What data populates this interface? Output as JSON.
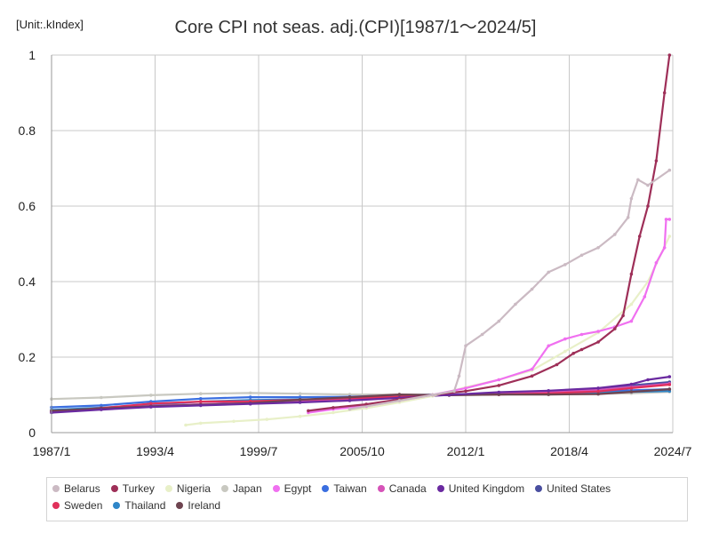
{
  "unit_label": "[Unit:.kIndex]",
  "chart_data": {
    "type": "line",
    "title": "Core CPI not seas. adj.(CPI)[1987/1～2024/5]",
    "xlabel": "",
    "ylabel": "",
    "xlim": [
      1987.0,
      2024.5
    ],
    "ylim": [
      0,
      1
    ],
    "x_ticks": [
      {
        "value": 1987.0,
        "label": "1987/1"
      },
      {
        "value": 1993.25,
        "label": "1993/4"
      },
      {
        "value": 1999.5,
        "label": "1999/7"
      },
      {
        "value": 2005.75,
        "label": "2005/10"
      },
      {
        "value": 2012.0,
        "label": "2012/1"
      },
      {
        "value": 2018.25,
        "label": "2018/4"
      },
      {
        "value": 2024.5,
        "label": "2024/7"
      }
    ],
    "y_ticks": [
      {
        "value": 0,
        "label": "0"
      },
      {
        "value": 0.2,
        "label": "0.2"
      },
      {
        "value": 0.4,
        "label": "0.4"
      },
      {
        "value": 0.6,
        "label": "0.6"
      },
      {
        "value": 0.8,
        "label": "0.8"
      },
      {
        "value": 1,
        "label": "1"
      }
    ],
    "grid": true,
    "legend_position": "bottom",
    "series": [
      {
        "name": "Japan",
        "color": "#c8c8c0",
        "points": [
          [
            1987,
            0.089
          ],
          [
            1990,
            0.093
          ],
          [
            1993,
            0.099
          ],
          [
            1996,
            0.103
          ],
          [
            1999,
            0.105
          ],
          [
            2002,
            0.103
          ],
          [
            2005,
            0.101
          ],
          [
            2008,
            0.101
          ],
          [
            2011,
            0.1
          ],
          [
            2014,
            0.102
          ],
          [
            2017,
            0.103
          ],
          [
            2020,
            0.103
          ],
          [
            2022,
            0.104
          ],
          [
            2024.3,
            0.108
          ]
        ]
      },
      {
        "name": "Taiwan",
        "color": "#3a6ee0",
        "points": [
          [
            1987,
            0.067
          ],
          [
            1990,
            0.072
          ],
          [
            1993,
            0.082
          ],
          [
            1996,
            0.09
          ],
          [
            1999,
            0.094
          ],
          [
            2002,
            0.094
          ],
          [
            2005,
            0.095
          ],
          [
            2008,
            0.099
          ],
          [
            2011,
            0.101
          ],
          [
            2014,
            0.104
          ],
          [
            2017,
            0.106
          ],
          [
            2020,
            0.108
          ],
          [
            2022,
            0.112
          ],
          [
            2024.3,
            0.115
          ]
        ]
      },
      {
        "name": "Thailand",
        "color": "#2f86c8",
        "points": [
          [
            1987,
            0.06
          ],
          [
            1990,
            0.066
          ],
          [
            1993,
            0.074
          ],
          [
            1996,
            0.082
          ],
          [
            1999,
            0.086
          ],
          [
            2002,
            0.088
          ],
          [
            2005,
            0.09
          ],
          [
            2008,
            0.096
          ],
          [
            2011,
            0.1
          ],
          [
            2014,
            0.103
          ],
          [
            2017,
            0.104
          ],
          [
            2020,
            0.105
          ],
          [
            2022,
            0.108
          ],
          [
            2024.3,
            0.11
          ]
        ]
      },
      {
        "name": "United States",
        "color": "#4a4fa0",
        "points": [
          [
            1987,
            0.055
          ],
          [
            1990,
            0.062
          ],
          [
            1993,
            0.069
          ],
          [
            1996,
            0.075
          ],
          [
            1999,
            0.08
          ],
          [
            2002,
            0.085
          ],
          [
            2005,
            0.09
          ],
          [
            2008,
            0.096
          ],
          [
            2011,
            0.1
          ],
          [
            2014,
            0.105
          ],
          [
            2017,
            0.11
          ],
          [
            2020,
            0.116
          ],
          [
            2022,
            0.125
          ],
          [
            2024.3,
            0.134
          ]
        ]
      },
      {
        "name": "Canada",
        "color": "#d653b8",
        "points": [
          [
            1987,
            0.056
          ],
          [
            1990,
            0.063
          ],
          [
            1993,
            0.071
          ],
          [
            1996,
            0.075
          ],
          [
            1999,
            0.079
          ],
          [
            2002,
            0.084
          ],
          [
            2005,
            0.09
          ],
          [
            2008,
            0.095
          ],
          [
            2011,
            0.1
          ],
          [
            2014,
            0.104
          ],
          [
            2017,
            0.108
          ],
          [
            2020,
            0.113
          ],
          [
            2022,
            0.121
          ],
          [
            2024.3,
            0.13
          ]
        ]
      },
      {
        "name": "Sweden",
        "color": "#e0305a",
        "points": [
          [
            1987,
            0.055
          ],
          [
            1990,
            0.065
          ],
          [
            1993,
            0.077
          ],
          [
            1996,
            0.082
          ],
          [
            1999,
            0.083
          ],
          [
            2002,
            0.087
          ],
          [
            2005,
            0.091
          ],
          [
            2008,
            0.095
          ],
          [
            2011,
            0.1
          ],
          [
            2014,
            0.101
          ],
          [
            2017,
            0.104
          ],
          [
            2020,
            0.109
          ],
          [
            2022,
            0.118
          ],
          [
            2024.3,
            0.127
          ]
        ]
      },
      {
        "name": "Ireland",
        "color": "#6e4450",
        "points": [
          [
            1987,
            0.058
          ],
          [
            1990,
            0.064
          ],
          [
            1993,
            0.07
          ],
          [
            1996,
            0.074
          ],
          [
            1999,
            0.078
          ],
          [
            2002,
            0.087
          ],
          [
            2005,
            0.094
          ],
          [
            2008,
            0.101
          ],
          [
            2011,
            0.099
          ],
          [
            2014,
            0.101
          ],
          [
            2017,
            0.101
          ],
          [
            2020,
            0.102
          ],
          [
            2022,
            0.108
          ],
          [
            2024.3,
            0.115
          ]
        ]
      },
      {
        "name": "United Kingdom",
        "color": "#6a2aa0",
        "points": [
          [
            1987,
            0.053
          ],
          [
            1990,
            0.061
          ],
          [
            1993,
            0.068
          ],
          [
            1996,
            0.072
          ],
          [
            1999,
            0.076
          ],
          [
            2002,
            0.08
          ],
          [
            2005,
            0.085
          ],
          [
            2008,
            0.092
          ],
          [
            2011,
            0.1
          ],
          [
            2014,
            0.107
          ],
          [
            2017,
            0.111
          ],
          [
            2020,
            0.118
          ],
          [
            2022,
            0.128
          ],
          [
            2023,
            0.14
          ],
          [
            2024.3,
            0.148
          ]
        ]
      },
      {
        "name": "Nigeria",
        "color": "#e8f0c8",
        "points": [
          [
            1995.1,
            0.02
          ],
          [
            1996,
            0.025
          ],
          [
            1998,
            0.03
          ],
          [
            2000,
            0.035
          ],
          [
            2002,
            0.043
          ],
          [
            2004,
            0.053
          ],
          [
            2006,
            0.065
          ],
          [
            2008,
            0.08
          ],
          [
            2010,
            0.097
          ],
          [
            2012,
            0.12
          ],
          [
            2014,
            0.14
          ],
          [
            2016,
            0.165
          ],
          [
            2018,
            0.215
          ],
          [
            2020,
            0.265
          ],
          [
            2022,
            0.34
          ],
          [
            2023,
            0.4
          ],
          [
            2024.3,
            0.52
          ]
        ]
      },
      {
        "name": "Egypt",
        "color": "#f070f0",
        "points": [
          [
            2002.5,
            0.053
          ],
          [
            2004,
            0.062
          ],
          [
            2006,
            0.07
          ],
          [
            2008,
            0.085
          ],
          [
            2010,
            0.1
          ],
          [
            2012,
            0.118
          ],
          [
            2014,
            0.14
          ],
          [
            2016,
            0.168
          ],
          [
            2017,
            0.23
          ],
          [
            2018,
            0.248
          ],
          [
            2019,
            0.26
          ],
          [
            2020,
            0.268
          ],
          [
            2021,
            0.28
          ],
          [
            2022,
            0.295
          ],
          [
            2022.8,
            0.36
          ],
          [
            2023.5,
            0.45
          ],
          [
            2024.0,
            0.49
          ],
          [
            2024.1,
            0.565
          ],
          [
            2024.3,
            0.565
          ]
        ]
      },
      {
        "name": "Turkey",
        "color": "#9e2f58",
        "points": [
          [
            2002.5,
            0.058
          ],
          [
            2004,
            0.066
          ],
          [
            2006,
            0.075
          ],
          [
            2008,
            0.088
          ],
          [
            2010,
            0.1
          ],
          [
            2012,
            0.11
          ],
          [
            2014,
            0.125
          ],
          [
            2016,
            0.15
          ],
          [
            2017.5,
            0.18
          ],
          [
            2018.5,
            0.21
          ],
          [
            2019,
            0.22
          ],
          [
            2020,
            0.24
          ],
          [
            2021,
            0.275
          ],
          [
            2021.5,
            0.31
          ],
          [
            2022,
            0.42
          ],
          [
            2022.5,
            0.52
          ],
          [
            2023,
            0.6
          ],
          [
            2023.5,
            0.72
          ],
          [
            2024,
            0.9
          ],
          [
            2024.3,
            1.0
          ]
        ]
      },
      {
        "name": "Belarus",
        "color": "#cbbac3",
        "points": [
          [
            2005,
            0.062
          ],
          [
            2008,
            0.085
          ],
          [
            2010,
            0.1
          ],
          [
            2011.3,
            0.11
          ],
          [
            2011.6,
            0.15
          ],
          [
            2012,
            0.23
          ],
          [
            2013,
            0.26
          ],
          [
            2014,
            0.295
          ],
          [
            2015,
            0.34
          ],
          [
            2016,
            0.38
          ],
          [
            2017,
            0.425
          ],
          [
            2018,
            0.445
          ],
          [
            2019,
            0.47
          ],
          [
            2020,
            0.49
          ],
          [
            2021,
            0.525
          ],
          [
            2021.8,
            0.57
          ],
          [
            2022,
            0.62
          ],
          [
            2022.4,
            0.67
          ],
          [
            2023,
            0.655
          ],
          [
            2024.3,
            0.695
          ]
        ]
      }
    ],
    "legend_order": [
      "Belarus",
      "Turkey",
      "Nigeria",
      "Japan",
      "Egypt",
      "Taiwan",
      "Canada",
      "United Kingdom",
      "United States",
      "Sweden",
      "Thailand",
      "Ireland"
    ]
  }
}
